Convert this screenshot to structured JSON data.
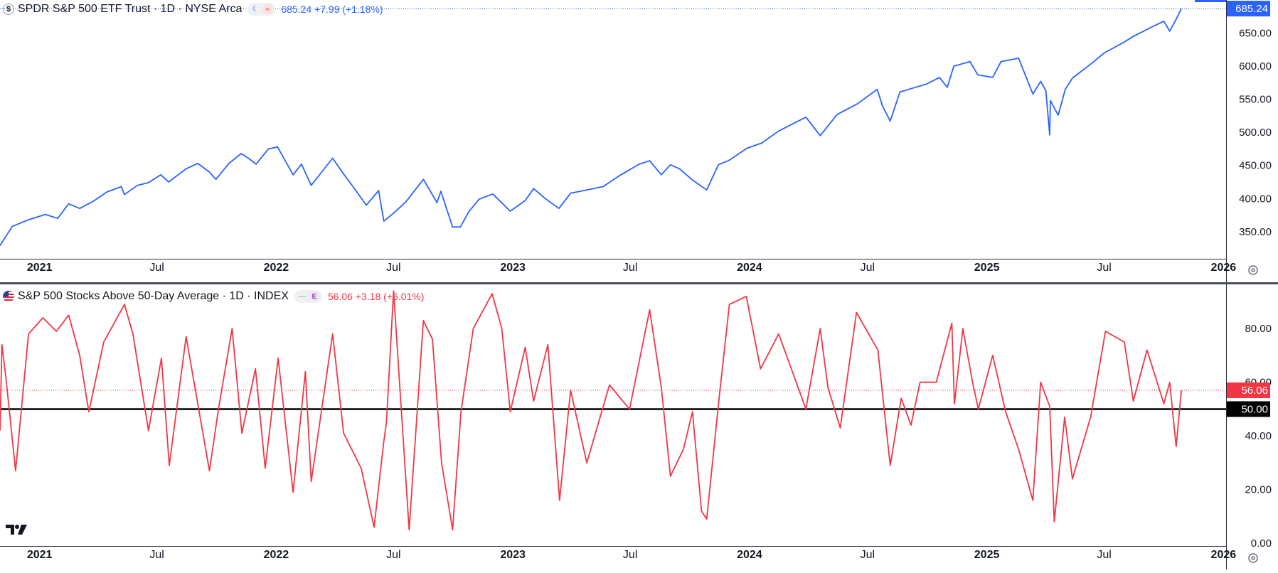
{
  "top_header": {
    "symbol_icon": "dollar-icon",
    "title": "SPDR S&P 500 ETF Trust · 1D · NYSE Arca",
    "quote": "685.24 +7.99 (+1.18%)",
    "quote_color": "#2962ff"
  },
  "bottom_header": {
    "symbol_icon": "us-flag-icon",
    "title": "S&P 500 Stocks Above 50-Day Average · 1D · INDEX",
    "badge": "E",
    "quote": "56.06 +3.18 (+6.01%)",
    "quote_color": "#f23645"
  },
  "colors": {
    "price_line": "#2962ff",
    "breadth_line": "#f23645",
    "threshold_line": "#000000",
    "axis_text": "#131722"
  },
  "x_axis_labels": [
    "2021",
    "Jul",
    "2022",
    "Jul",
    "2023",
    "Jul",
    "2024",
    "Jul",
    "2025",
    "Jul",
    "2026"
  ],
  "chart_data": [
    {
      "type": "line",
      "title": "SPDR S&P 500 ETF Trust · 1D · NYSE Arca",
      "y_ticks": [
        "350.00",
        "400.00",
        "450.00",
        "500.00",
        "550.00",
        "600.00",
        "650.00"
      ],
      "ylim": [
        309,
        700
      ],
      "x_range": [
        "2020-11-01",
        "2026-01-05"
      ],
      "last_value_label": "685.24",
      "series": [
        {
          "x": [
            "2020-11-01",
            "2020-11-20",
            "2020-12-15",
            "2021-01-10",
            "2021-01-29",
            "2021-02-15",
            "2021-03-04",
            "2021-03-25",
            "2021-04-15",
            "2021-05-07",
            "2021-05-12",
            "2021-06-01",
            "2021-06-18",
            "2021-07-07",
            "2021-07-19",
            "2021-08-15",
            "2021-09-02",
            "2021-09-20",
            "2021-09-30",
            "2021-10-20",
            "2021-11-08",
            "2021-11-19",
            "2021-12-01",
            "2021-12-20",
            "2022-01-03",
            "2022-01-27",
            "2022-02-09",
            "2022-02-24",
            "2022-03-29",
            "2022-04-15",
            "2022-05-04",
            "2022-05-20",
            "2022-06-08",
            "2022-06-16",
            "2022-07-01",
            "2022-07-20",
            "2022-08-16",
            "2022-09-06",
            "2022-09-12",
            "2022-09-30",
            "2022-10-12",
            "2022-10-25",
            "2022-11-10",
            "2022-12-01",
            "2022-12-28",
            "2023-01-20",
            "2023-02-02",
            "2023-02-20",
            "2023-03-13",
            "2023-03-31",
            "2023-04-20",
            "2023-05-20",
            "2023-06-15",
            "2023-07-15",
            "2023-07-31",
            "2023-08-18",
            "2023-09-01",
            "2023-09-15",
            "2023-10-05",
            "2023-10-27",
            "2023-11-14",
            "2023-12-01",
            "2023-12-28",
            "2024-01-20",
            "2024-02-15",
            "2024-03-28",
            "2024-04-19",
            "2024-05-15",
            "2024-06-15",
            "2024-07-16",
            "2024-07-24",
            "2024-08-05",
            "2024-08-20",
            "2024-09-06",
            "2024-09-30",
            "2024-10-20",
            "2024-11-01",
            "2024-11-11",
            "2024-12-06",
            "2024-12-18",
            "2025-01-10",
            "2025-01-23",
            "2025-02-19",
            "2025-03-13",
            "2025-03-25",
            "2025-04-02",
            "2025-04-08",
            "2025-04-09",
            "2025-04-21",
            "2025-05-02",
            "2025-05-13",
            "2025-06-10",
            "2025-07-01",
            "2025-07-31",
            "2025-08-15",
            "2025-09-10",
            "2025-10-01",
            "2025-10-10",
            "2025-10-20",
            "2025-10-28"
          ],
          "values": [
            329,
            358,
            368,
            376,
            370,
            392,
            385,
            396,
            410,
            418,
            406,
            420,
            424,
            436,
            425,
            445,
            453,
            440,
            429,
            453,
            468,
            461,
            452,
            475,
            478,
            436,
            452,
            420,
            461,
            437,
            412,
            390,
            412,
            366,
            378,
            395,
            429,
            394,
            411,
            357,
            357,
            380,
            399,
            407,
            381,
            397,
            415,
            400,
            385,
            408,
            412,
            418,
            435,
            452,
            457,
            436,
            451,
            445,
            428,
            413,
            451,
            458,
            476,
            484,
            502,
            523,
            495,
            527,
            543,
            565,
            540,
            517,
            561,
            566,
            573,
            583,
            568,
            600,
            607,
            587,
            583,
            607,
            612,
            558,
            577,
            563,
            496,
            548,
            526,
            565,
            582,
            603,
            620,
            636,
            645,
            658,
            668,
            653,
            671,
            687
          ]
        }
      ]
    },
    {
      "type": "line",
      "title": "S&P 500 Stocks Above 50-Day Average · 1D · INDEX",
      "y_ticks": [
        "0.00",
        "20.00",
        "40.00",
        "60.00",
        "80.00"
      ],
      "ylim": [
        -1,
        97
      ],
      "x_range": [
        "2020-11-01",
        "2026-01-05"
      ],
      "last_value_label": "56.06",
      "threshold": 50,
      "threshold_label": "50.00",
      "series": [
        {
          "x": [
            "2020-11-01",
            "2020-11-04",
            "2020-11-10",
            "2020-11-25",
            "2020-12-15",
            "2021-01-06",
            "2021-01-27",
            "2021-02-15",
            "2021-03-04",
            "2021-03-18",
            "2021-04-10",
            "2021-05-12",
            "2021-05-25",
            "2021-06-18",
            "2021-07-08",
            "2021-07-20",
            "2021-08-15",
            "2021-09-20",
            "2021-10-04",
            "2021-10-25",
            "2021-11-09",
            "2021-11-30",
            "2021-12-15",
            "2022-01-04",
            "2022-01-27",
            "2022-02-15",
            "2022-02-24",
            "2022-03-29",
            "2022-04-15",
            "2022-05-12",
            "2022-06-01",
            "2022-06-16",
            "2022-06-20",
            "2022-07-01",
            "2022-07-25",
            "2022-08-16",
            "2022-08-30",
            "2022-09-13",
            "2022-09-30",
            "2022-10-13",
            "2022-11-01",
            "2022-11-30",
            "2022-12-15",
            "2022-12-28",
            "2023-01-20",
            "2023-02-02",
            "2023-02-24",
            "2023-03-14",
            "2023-03-31",
            "2023-04-25",
            "2023-05-30",
            "2023-06-30",
            "2023-07-31",
            "2023-08-18",
            "2023-09-01",
            "2023-09-21",
            "2023-10-05",
            "2023-10-19",
            "2023-10-27",
            "2023-11-15",
            "2023-12-01",
            "2023-12-27",
            "2024-01-18",
            "2024-02-15",
            "2024-03-28",
            "2024-04-19",
            "2024-05-01",
            "2024-05-20",
            "2024-06-14",
            "2024-07-17",
            "2024-08-05",
            "2024-08-22",
            "2024-09-06",
            "2024-09-20",
            "2024-10-15",
            "2024-11-08",
            "2024-11-12",
            "2024-11-25",
            "2024-12-10",
            "2024-12-19",
            "2025-01-10",
            "2025-01-30",
            "2025-02-19",
            "2025-03-13",
            "2025-03-25",
            "2025-04-08",
            "2025-04-15",
            "2025-05-01",
            "2025-05-13",
            "2025-06-10",
            "2025-07-03",
            "2025-08-01",
            "2025-08-15",
            "2025-09-05",
            "2025-10-01",
            "2025-10-10",
            "2025-10-20",
            "2025-10-28"
          ],
          "values": [
            42,
            74,
            62,
            27,
            78,
            84,
            79,
            85,
            70,
            49,
            75,
            89,
            78,
            42,
            69,
            29,
            77,
            27,
            50,
            80,
            41,
            65,
            28,
            69,
            19,
            64,
            23,
            78,
            41,
            28,
            6,
            38,
            45,
            94,
            5,
            83,
            76,
            30,
            5,
            49,
            80,
            93,
            80,
            49,
            73,
            53,
            74,
            16,
            57,
            30,
            59,
            50,
            87,
            58,
            25,
            35,
            49,
            12,
            9,
            54,
            89,
            92,
            65,
            78,
            50,
            80,
            58,
            43,
            86,
            72,
            29,
            54,
            44,
            60,
            60,
            82,
            52,
            80,
            60,
            50,
            70,
            49,
            35,
            16,
            60,
            51,
            8,
            47,
            24,
            47,
            79,
            75,
            53,
            72,
            52,
            60,
            36,
            57
          ]
        }
      ]
    }
  ]
}
